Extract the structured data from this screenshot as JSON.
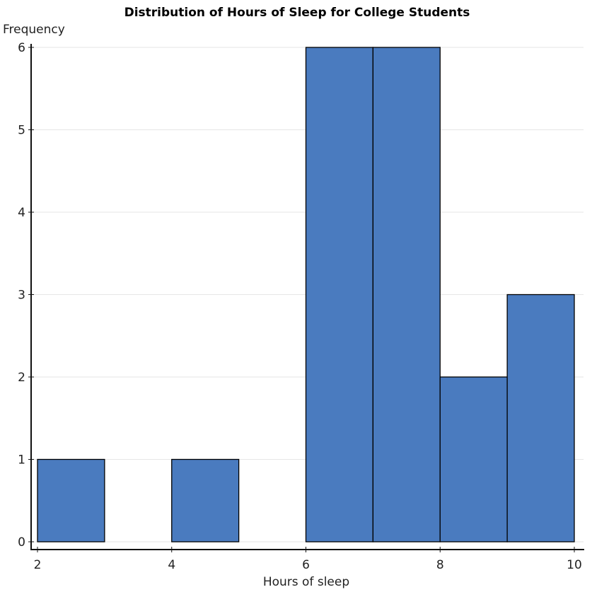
{
  "chart_data": {
    "type": "bar",
    "subtype": "histogram",
    "title": "Distribution of Hours of Sleep for College Students",
    "xlabel": "Hours of sleep",
    "ylabel": "Frequency",
    "bins": [
      {
        "start": 2,
        "end": 3,
        "count": 1
      },
      {
        "start": 3,
        "end": 4,
        "count": 0
      },
      {
        "start": 4,
        "end": 5,
        "count": 1
      },
      {
        "start": 5,
        "end": 6,
        "count": 0
      },
      {
        "start": 6,
        "end": 7,
        "count": 6
      },
      {
        "start": 7,
        "end": 8,
        "count": 6
      },
      {
        "start": 8,
        "end": 9,
        "count": 2
      },
      {
        "start": 9,
        "end": 10,
        "count": 3
      }
    ],
    "categories": [
      "2-3",
      "3-4",
      "4-5",
      "5-6",
      "6-7",
      "7-8",
      "8-9",
      "9-10"
    ],
    "values": [
      1,
      0,
      1,
      0,
      6,
      6,
      2,
      3
    ],
    "xlim": [
      2,
      10
    ],
    "ylim": [
      0,
      6
    ],
    "xticks": [
      2,
      4,
      6,
      8,
      10
    ],
    "yticks": [
      0,
      1,
      2,
      3,
      4,
      5,
      6
    ],
    "grid": "horizontal",
    "legend": "none",
    "bar_color": "#4a7bbf",
    "bar_edge_color": "#000000"
  }
}
